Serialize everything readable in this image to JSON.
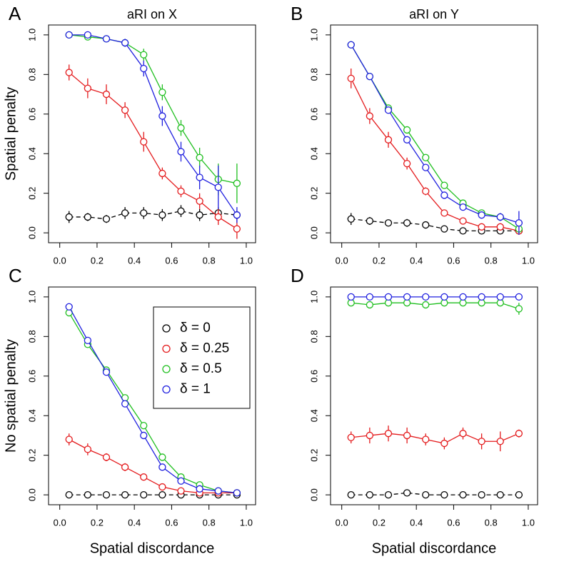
{
  "chart_data": [
    {
      "type": "line",
      "panel_label": "A",
      "title": "aRI on X",
      "ylabel": "Spatial penalty",
      "x": [
        0.05,
        0.15,
        0.25,
        0.35,
        0.45,
        0.55,
        0.65,
        0.75,
        0.85,
        0.95
      ],
      "xlim": [
        -0.06,
        1.05
      ],
      "ylim": [
        -0.05,
        1.05
      ],
      "xticks": [
        {
          "value": 0,
          "label": "0.0"
        },
        {
          "value": 0.2,
          "label": "0.2"
        },
        {
          "value": 0.4,
          "label": "0.4"
        },
        {
          "value": 0.6,
          "label": "0.6"
        },
        {
          "value": 0.8,
          "label": "0.8"
        },
        {
          "value": 1,
          "label": "1.0"
        }
      ],
      "yticks": [
        {
          "value": 0,
          "label": "0.0"
        },
        {
          "value": 0.2,
          "label": "0.2"
        },
        {
          "value": 0.4,
          "label": "0.4"
        },
        {
          "value": 0.6,
          "label": "0.6"
        },
        {
          "value": 0.8,
          "label": "0.8"
        },
        {
          "value": 1,
          "label": "1.0"
        }
      ],
      "series": [
        {
          "color": "#000000",
          "linestyle": "dashed",
          "values": [
            0.08,
            0.08,
            0.07,
            0.1,
            0.1,
            0.09,
            0.11,
            0.09,
            0.1,
            0.09
          ],
          "errors": [
            0.03,
            0.02,
            0.02,
            0.03,
            0.03,
            0.03,
            0.03,
            0.03,
            0.03,
            0.02
          ]
        },
        {
          "color": "#e41a1c",
          "linestyle": "solid",
          "values": [
            0.81,
            0.73,
            0.7,
            0.62,
            0.46,
            0.3,
            0.21,
            0.16,
            0.08,
            0.02
          ],
          "errors": [
            0.04,
            0.05,
            0.05,
            0.04,
            0.05,
            0.03,
            0.03,
            0.04,
            0.04,
            0.05
          ]
        },
        {
          "color": "#1fbf1f",
          "linestyle": "solid",
          "values": [
            1.0,
            0.99,
            0.98,
            0.96,
            0.9,
            0.71,
            0.53,
            0.38,
            0.27,
            0.25
          ],
          "errors": [
            0.005,
            0.01,
            0.01,
            0.02,
            0.03,
            0.04,
            0.04,
            0.05,
            0.08,
            0.1
          ]
        },
        {
          "color": "#1f1fdf",
          "linestyle": "solid",
          "values": [
            1.0,
            1.0,
            0.98,
            0.96,
            0.83,
            0.59,
            0.41,
            0.28,
            0.23,
            0.09
          ],
          "errors": [
            0.005,
            0.01,
            0.01,
            0.02,
            0.04,
            0.05,
            0.05,
            0.06,
            0.11,
            0.04
          ]
        }
      ]
    },
    {
      "type": "line",
      "panel_label": "B",
      "title": "aRI on Y",
      "x": [
        0.05,
        0.15,
        0.25,
        0.35,
        0.45,
        0.55,
        0.65,
        0.75,
        0.85,
        0.95
      ],
      "xlim": [
        -0.06,
        1.05
      ],
      "ylim": [
        -0.05,
        1.05
      ],
      "xticks": [
        {
          "value": 0,
          "label": "0.0"
        },
        {
          "value": 0.2,
          "label": "0.2"
        },
        {
          "value": 0.4,
          "label": "0.4"
        },
        {
          "value": 0.6,
          "label": "0.6"
        },
        {
          "value": 0.8,
          "label": "0.8"
        },
        {
          "value": 1,
          "label": "1.0"
        }
      ],
      "yticks": [
        {
          "value": 0,
          "label": "0.0"
        },
        {
          "value": 0.2,
          "label": "0.2"
        },
        {
          "value": 0.4,
          "label": "0.4"
        },
        {
          "value": 0.6,
          "label": "0.6"
        },
        {
          "value": 0.8,
          "label": "0.8"
        },
        {
          "value": 1,
          "label": "1.0"
        }
      ],
      "series": [
        {
          "color": "#000000",
          "linestyle": "dashed",
          "values": [
            0.07,
            0.06,
            0.05,
            0.05,
            0.04,
            0.02,
            0.01,
            0.01,
            0.01,
            0.01
          ],
          "errors": [
            0.03,
            0.02,
            0.01,
            0.02,
            0.01,
            0.01,
            0.01,
            0.01,
            0.01,
            0.01
          ]
        },
        {
          "color": "#e41a1c",
          "linestyle": "solid",
          "values": [
            0.78,
            0.59,
            0.47,
            0.35,
            0.21,
            0.1,
            0.06,
            0.03,
            0.03,
            0.01
          ],
          "errors": [
            0.05,
            0.04,
            0.04,
            0.03,
            0.02,
            0.01,
            0.01,
            0.01,
            0.01,
            0.01
          ]
        },
        {
          "color": "#1fbf1f",
          "linestyle": "solid",
          "values": [
            0.95,
            0.79,
            0.63,
            0.52,
            0.38,
            0.24,
            0.15,
            0.1,
            0.08,
            0.02
          ],
          "errors": [
            0.01,
            0.01,
            0.01,
            0.01,
            0.01,
            0.01,
            0.01,
            0.01,
            0.01,
            0.01
          ]
        },
        {
          "color": "#1f1fdf",
          "linestyle": "solid",
          "values": [
            0.95,
            0.79,
            0.62,
            0.47,
            0.33,
            0.19,
            0.13,
            0.09,
            0.08,
            0.05
          ],
          "errors": [
            0.01,
            0.01,
            0.01,
            0.01,
            0.01,
            0.01,
            0.01,
            0.01,
            0.02,
            0.06
          ]
        }
      ]
    },
    {
      "type": "line",
      "panel_label": "C",
      "ylabel": "No spatial penalty",
      "xlabel": "Spatial discordance",
      "legend": "top-right",
      "x": [
        0.05,
        0.15,
        0.25,
        0.35,
        0.45,
        0.55,
        0.65,
        0.75,
        0.85,
        0.95
      ],
      "xlim": [
        -0.06,
        1.05
      ],
      "ylim": [
        -0.05,
        1.05
      ],
      "xticks": [
        {
          "value": 0,
          "label": "0.0"
        },
        {
          "value": 0.2,
          "label": "0.2"
        },
        {
          "value": 0.4,
          "label": "0.4"
        },
        {
          "value": 0.6,
          "label": "0.6"
        },
        {
          "value": 0.8,
          "label": "0.8"
        },
        {
          "value": 1,
          "label": "1.0"
        }
      ],
      "yticks": [
        {
          "value": 0,
          "label": "0.0"
        },
        {
          "value": 0.2,
          "label": "0.2"
        },
        {
          "value": 0.4,
          "label": "0.4"
        },
        {
          "value": 0.6,
          "label": "0.6"
        },
        {
          "value": 0.8,
          "label": "0.8"
        },
        {
          "value": 1,
          "label": "1.0"
        }
      ],
      "series": [
        {
          "name": "δ = 0",
          "color": "#000000",
          "linestyle": "dashed",
          "values": [
            0.0,
            0.0,
            0.0,
            0.0,
            0.0,
            0.0,
            0.0,
            0.0,
            0.0,
            0.0
          ],
          "errors": [
            0.003,
            0.003,
            0.003,
            0.003,
            0.003,
            0.003,
            0.003,
            0.003,
            0.003,
            0.003
          ]
        },
        {
          "name": "δ = 0.25",
          "color": "#e41a1c",
          "linestyle": "solid",
          "values": [
            0.28,
            0.23,
            0.19,
            0.14,
            0.09,
            0.04,
            0.02,
            0.01,
            0.01,
            0.01
          ],
          "errors": [
            0.03,
            0.03,
            0.02,
            0.02,
            0.01,
            0.01,
            0.01,
            0.01,
            0.01,
            0.01
          ]
        },
        {
          "name": "δ = 0.5",
          "color": "#1fbf1f",
          "linestyle": "solid",
          "values": [
            0.92,
            0.76,
            0.63,
            0.49,
            0.35,
            0.19,
            0.09,
            0.05,
            0.02,
            0.01
          ],
          "errors": [
            0.01,
            0.01,
            0.01,
            0.01,
            0.01,
            0.01,
            0.01,
            0.01,
            0.01,
            0.01
          ]
        },
        {
          "name": "δ = 1",
          "color": "#1f1fdf",
          "linestyle": "solid",
          "values": [
            0.95,
            0.78,
            0.62,
            0.46,
            0.3,
            0.14,
            0.07,
            0.03,
            0.02,
            0.01
          ],
          "errors": [
            0.01,
            0.01,
            0.01,
            0.01,
            0.01,
            0.01,
            0.01,
            0.01,
            0.01,
            0.01
          ]
        }
      ]
    },
    {
      "type": "line",
      "panel_label": "D",
      "xlabel": "Spatial discordance",
      "x": [
        0.05,
        0.15,
        0.25,
        0.35,
        0.45,
        0.55,
        0.65,
        0.75,
        0.85,
        0.95
      ],
      "xlim": [
        -0.06,
        1.05
      ],
      "ylim": [
        -0.05,
        1.05
      ],
      "xticks": [
        {
          "value": 0,
          "label": "0.0"
        },
        {
          "value": 0.2,
          "label": "0.2"
        },
        {
          "value": 0.4,
          "label": "0.4"
        },
        {
          "value": 0.6,
          "label": "0.6"
        },
        {
          "value": 0.8,
          "label": "0.8"
        },
        {
          "value": 1,
          "label": "1.0"
        }
      ],
      "yticks": [
        {
          "value": 0,
          "label": "0.0"
        },
        {
          "value": 0.2,
          "label": "0.2"
        },
        {
          "value": 0.4,
          "label": "0.4"
        },
        {
          "value": 0.6,
          "label": "0.6"
        },
        {
          "value": 0.8,
          "label": "0.8"
        },
        {
          "value": 1,
          "label": "1.0"
        }
      ],
      "series": [
        {
          "color": "#000000",
          "linestyle": "dashed",
          "values": [
            0.0,
            0.0,
            0.0,
            0.01,
            0.0,
            0.0,
            0.0,
            0.0,
            0.0,
            0.0
          ],
          "errors": [
            0.003,
            0.003,
            0.003,
            0.003,
            0.003,
            0.003,
            0.003,
            0.003,
            0.003,
            0.003
          ]
        },
        {
          "color": "#e41a1c",
          "linestyle": "solid",
          "values": [
            0.29,
            0.3,
            0.31,
            0.3,
            0.28,
            0.26,
            0.31,
            0.27,
            0.27,
            0.31
          ],
          "errors": [
            0.03,
            0.04,
            0.04,
            0.04,
            0.03,
            0.03,
            0.03,
            0.04,
            0.05,
            0.02
          ]
        },
        {
          "color": "#1fbf1f",
          "linestyle": "solid",
          "values": [
            0.97,
            0.96,
            0.97,
            0.97,
            0.96,
            0.97,
            0.97,
            0.97,
            0.97,
            0.94
          ],
          "errors": [
            0.01,
            0.01,
            0.01,
            0.01,
            0.01,
            0.01,
            0.01,
            0.01,
            0.01,
            0.03
          ]
        },
        {
          "color": "#1f1fdf",
          "linestyle": "solid",
          "values": [
            1.0,
            1.0,
            1.0,
            1.0,
            1.0,
            1.0,
            1.0,
            1.0,
            1.0,
            1.0
          ],
          "errors": [
            0.003,
            0.003,
            0.003,
            0.003,
            0.003,
            0.003,
            0.003,
            0.003,
            0.003,
            0.003
          ]
        }
      ]
    }
  ]
}
